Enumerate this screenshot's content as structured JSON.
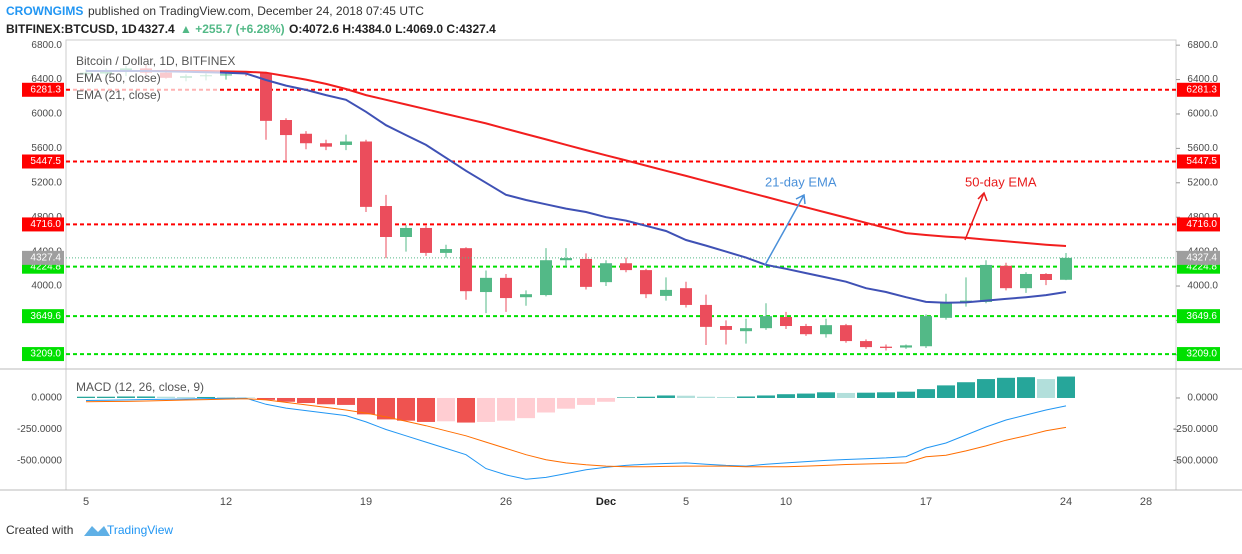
{
  "header": {
    "author": "CROWNGIMS",
    "published": "published on TradingView.com, December 24, 2018 07:45 UTC",
    "symbol": "BITFINEX:BTCUSD, 1D",
    "price": "4327.4",
    "change": "▲ +255.7 (+6.28%)",
    "ohlc": "O:4072.6 H:4384.0 L:4069.0 C:4327.4"
  },
  "footer": {
    "created": "Created with",
    "brand": "TradingView"
  },
  "chart_data": [
    {
      "type": "candlestick",
      "categories": [
        "5",
        null,
        null,
        null,
        null,
        null,
        null,
        "12",
        null,
        null,
        null,
        null,
        null,
        null,
        "19",
        null,
        null,
        null,
        null,
        null,
        null,
        "26",
        null,
        null,
        null,
        null,
        "Dec",
        null,
        null,
        null,
        "5",
        null,
        null,
        null,
        null,
        "10",
        null,
        null,
        null,
        null,
        null,
        null,
        "17",
        null,
        null,
        null,
        null,
        null,
        null,
        "24",
        null,
        null,
        null,
        "28"
      ],
      "ylim": [
        3047,
        6860
      ],
      "yticks": [
        {
          "value": 6800,
          "label": "6800.0"
        },
        {
          "value": 6400,
          "label": "6400.0"
        },
        {
          "value": 6000,
          "label": "6000.0"
        },
        {
          "value": 5600,
          "label": "5600.0"
        },
        {
          "value": 5200,
          "label": "5200.0"
        },
        {
          "value": 4800,
          "label": "4800.0"
        },
        {
          "value": 4400,
          "label": "4400.0"
        },
        {
          "value": 4000,
          "label": "4000.0"
        },
        {
          "value": 3600,
          "label": "3600.0"
        },
        {
          "value": 3200,
          "label": "3200.0"
        }
      ],
      "series": [
        {
          "name": "Bitcoin / Dollar, 1D, BITFINEX",
          "type": "candlestick",
          "up_color": "#53b987",
          "down_color": "#eb4d5c",
          "open": [
            6460,
            6470,
            6490,
            6530,
            6480,
            6420,
            6440,
            6450,
            6490,
            6475,
            5930,
            5770,
            5660,
            5640,
            5680,
            4930,
            4570,
            4675,
            4385,
            4440,
            3930,
            4095,
            3870,
            3895,
            4300,
            4315,
            4045,
            4265,
            4185,
            3885,
            3975,
            3780,
            3535,
            3475,
            3510,
            3640,
            3535,
            3440,
            3545,
            3360,
            3295,
            3285,
            3300,
            3630,
            3815,
            3815,
            4235,
            3975,
            4140,
            4072.6,
            null,
            null,
            null,
            null
          ],
          "high": [
            6520,
            6530,
            6560,
            6570,
            6520,
            6460,
            6470,
            6490,
            6500,
            6490,
            5950,
            5800,
            5700,
            5760,
            5700,
            5060,
            4710,
            4700,
            4480,
            4450,
            4180,
            4140,
            3950,
            4440,
            4440,
            4380,
            4300,
            4330,
            4200,
            4100,
            4050,
            3900,
            3600,
            3620,
            3800,
            3700,
            3560,
            3620,
            3560,
            3380,
            3320,
            3320,
            3670,
            3910,
            4100,
            4300,
            4270,
            4160,
            4150,
            4384,
            null,
            null,
            null,
            null
          ],
          "low": [
            6420,
            6430,
            6440,
            6450,
            6410,
            6380,
            6390,
            6400,
            6440,
            5700,
            5465,
            5590,
            5580,
            5580,
            4860,
            4325,
            4400,
            4350,
            4330,
            3840,
            3685,
            3700,
            3770,
            3880,
            4220,
            3960,
            4000,
            4160,
            3860,
            3830,
            3750,
            3315,
            3320,
            3330,
            3490,
            3500,
            3420,
            3400,
            3340,
            3270,
            3250,
            3270,
            3280,
            3610,
            3760,
            3800,
            3950,
            3920,
            4010,
            4069,
            null,
            null,
            null,
            null
          ],
          "close": [
            6480,
            6500,
            6530,
            6480,
            6420,
            6440,
            6450,
            6460,
            6475,
            5920,
            5755,
            5660,
            5620,
            5680,
            4920,
            4570,
            4675,
            4385,
            4430,
            3940,
            4095,
            3860,
            3905,
            4300,
            4325,
            3990,
            4265,
            4185,
            3905,
            3955,
            3780,
            3525,
            3490,
            3510,
            3650,
            3535,
            3440,
            3545,
            3360,
            3290,
            3280,
            3310,
            3650,
            3815,
            3830,
            4245,
            3975,
            4140,
            4070,
            4327.4,
            null,
            null,
            null,
            null
          ]
        },
        {
          "name": "EMA (50, close)",
          "type": "line",
          "color": "#f21e1e",
          "values": [
            6500,
            6500,
            6500,
            6500,
            6500,
            6500,
            6500,
            6495,
            6490,
            6480,
            6440,
            6400,
            6350,
            6290,
            6220,
            6165,
            6110,
            6055,
            6000,
            5945,
            5890,
            5828,
            5766,
            5704,
            5642,
            5580,
            5520,
            5460,
            5400,
            5340,
            5280,
            5219,
            5158,
            5097,
            5036,
            4975,
            4915,
            4855,
            4795,
            4735,
            4675,
            4615,
            4593,
            4575,
            4560,
            4540,
            4520,
            4500,
            4480,
            4465,
            null,
            null,
            null,
            null
          ]
        },
        {
          "name": "EMA (21, close)",
          "type": "line",
          "color": "#3f51b5",
          "values": [
            6500,
            6500,
            6500,
            6500,
            6495,
            6490,
            6485,
            6480,
            6470,
            6395,
            6330,
            6280,
            6220,
            6165,
            6025,
            5870,
            5755,
            5640,
            5490,
            5340,
            5200,
            5060,
            5000,
            4950,
            4900,
            4860,
            4800,
            4760,
            4700,
            4640,
            4535,
            4470,
            4400,
            4330,
            4245,
            4200,
            4150,
            4100,
            4050,
            3975,
            3930,
            3870,
            3815,
            3805,
            3810,
            3830,
            3850,
            3870,
            3895,
            3930,
            null,
            null,
            null,
            null
          ]
        }
      ],
      "levels": [
        {
          "value": 6281.3,
          "color": "#ff0000"
        },
        {
          "value": 5447.5,
          "color": "#ff0000"
        },
        {
          "value": {
            "value": 4716,
            "label": "4716.0"
          },
          "color": "#ff0000"
        },
        {
          "value": 4224.8,
          "color": "#00e000"
        },
        {
          "value": 3649.6,
          "color": "#00e000"
        },
        {
          "value": {
            "value": 3209,
            "label": "3209.0"
          },
          "color": "#00e000"
        }
      ],
      "annotations": [
        {
          "text": "21-day EMA",
          "color": "#4a90d9"
        },
        {
          "text": "50-day EMA",
          "color": "#e81b1b"
        }
      ]
    },
    {
      "type": "macd",
      "title": "MACD (12, 26, close, 9)",
      "ylim": [
        -730,
        222
      ],
      "yticks": [
        {
          "value": 0,
          "label": "0.0000"
        },
        {
          "value": -250,
          "label": "-250.0000"
        },
        {
          "value": -500,
          "label": "-500.0000"
        }
      ],
      "series": [
        {
          "type": "histogram",
          "colors": [
            "#26a69a",
            "#b2dfdb",
            "#ef5350",
            "#ffcdd2"
          ],
          "values": [
            10,
            10,
            12,
            12,
            10,
            8,
            8,
            6,
            4,
            -15,
            -30,
            -40,
            -50,
            -55,
            -130,
            -170,
            -180,
            -190,
            -185,
            -195,
            -190,
            -180,
            -160,
            -115,
            -85,
            -55,
            -30,
            5,
            10,
            20,
            18,
            10,
            8,
            12,
            20,
            30,
            35,
            45,
            40,
            42,
            45,
            50,
            70,
            100,
            125,
            150,
            160,
            165,
            150,
            170,
            null,
            null,
            null,
            null
          ]
        },
        {
          "type": "line",
          "color": "#2196f3",
          "values": [
            -20,
            -18,
            -15,
            -12,
            -10,
            -8,
            -5,
            -3,
            -2,
            -50,
            -80,
            -100,
            -120,
            -140,
            -190,
            -250,
            -300,
            -350,
            -400,
            -450,
            -560,
            -610,
            -645,
            -630,
            -600,
            -570,
            -550,
            -535,
            -525,
            -520,
            -515,
            -525,
            -535,
            -540,
            -525,
            -515,
            -505,
            -495,
            -488,
            -482,
            -475,
            -465,
            -397,
            -357,
            -294,
            -230,
            -175,
            -135,
            -95,
            -63,
            null,
            null,
            null,
            null
          ]
        },
        {
          "type": "line",
          "color": "#ff6d00",
          "values": [
            -30,
            -28,
            -27,
            -24,
            -20,
            -16,
            -13,
            -9,
            -6,
            -15,
            -35,
            -55,
            -75,
            -95,
            -120,
            -150,
            -185,
            -220,
            -260,
            -300,
            -350,
            -400,
            -450,
            -490,
            -515,
            -530,
            -540,
            -545,
            -545,
            -543,
            -540,
            -540,
            -540,
            -545,
            -545,
            -545,
            -540,
            -535,
            -528,
            -524,
            -520,
            -515,
            -467,
            -455,
            -420,
            -380,
            -335,
            -300,
            -260,
            -233,
            null,
            null,
            null,
            null
          ]
        }
      ]
    }
  ]
}
